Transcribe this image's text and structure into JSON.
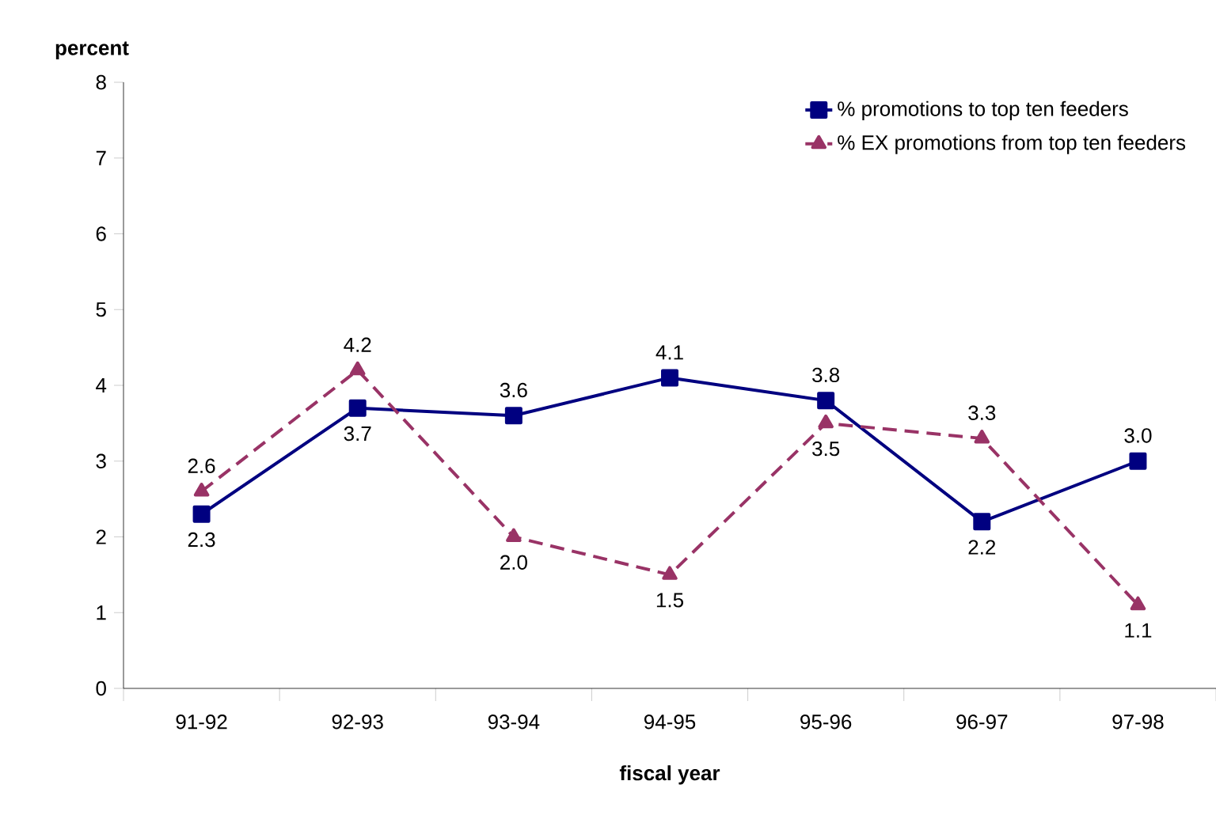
{
  "chart_data": {
    "type": "line",
    "xlabel": "fiscal year",
    "ylabel": "percent",
    "categories": [
      "91-92",
      "92-93",
      "93-94",
      "94-95",
      "95-96",
      "96-97",
      "97-98"
    ],
    "series": [
      {
        "name": "% promotions to top ten feeders",
        "color": "#000080",
        "marker": "square",
        "line_style": "solid",
        "values": [
          2.3,
          3.7,
          3.6,
          4.1,
          3.8,
          2.2,
          3.0
        ],
        "value_labels": [
          "2.3",
          "3.7",
          "3.6",
          "4.1",
          "3.8",
          "2.2",
          "3.0"
        ]
      },
      {
        "name": "% EX promotions from top ten feeders",
        "color": "#993366",
        "marker": "triangle",
        "line_style": "dashed",
        "values": [
          2.6,
          4.2,
          2.0,
          1.5,
          3.5,
          3.3,
          1.1
        ],
        "value_labels": [
          "2.6",
          "4.2",
          "2.0",
          "1.5",
          "3.5",
          "3.3",
          "1.1"
        ]
      }
    ],
    "ylim": [
      0,
      8
    ],
    "yticks": [
      0,
      1,
      2,
      3,
      4,
      5,
      6,
      7,
      8
    ],
    "grid": false,
    "legend": "top right"
  }
}
